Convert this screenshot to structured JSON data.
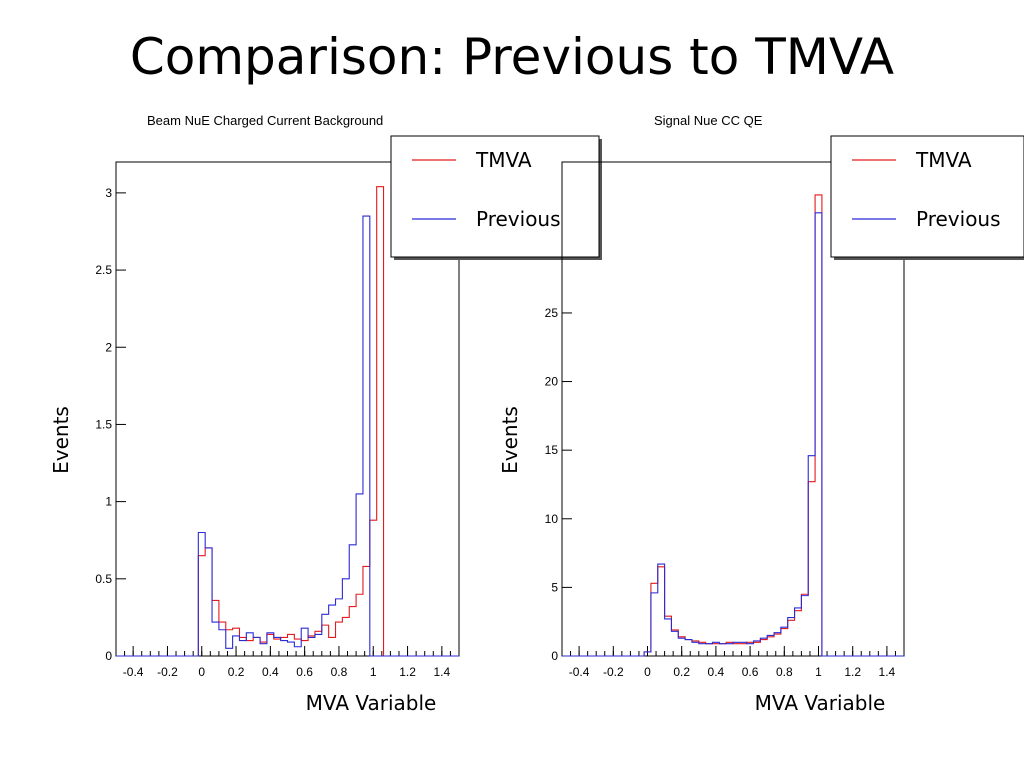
{
  "slide": {
    "title": "Comparison: Previous to TMVA"
  },
  "colors": {
    "tmva": "#e41a1c",
    "previous": "#2b2bd6",
    "axis": "#000000"
  },
  "chart_data": [
    {
      "type": "histogram",
      "title": "Beam NuE Charged Current Background",
      "xlabel": "MVA Variable",
      "ylabel": "Events",
      "xlim": [
        -0.5,
        1.5
      ],
      "ylim": [
        0,
        3.2
      ],
      "bin_width": 0.04,
      "xticks": [
        "-0.4",
        "-0.2",
        "0",
        "0.2",
        "0.4",
        "0.6",
        "0.8",
        "1",
        "1.2",
        "1.4"
      ],
      "yticks": [
        "0",
        "0.5",
        "1",
        "1.5",
        "2",
        "2.5",
        "3"
      ],
      "legend": {
        "position": "top-right",
        "entries": [
          "TMVA",
          "Previous"
        ]
      },
      "series": [
        {
          "name": "TMVA",
          "color": "#e41a1c",
          "values": [
            0.0,
            0.0,
            0.0,
            0.0,
            0.0,
            0.0,
            0.0,
            0.0,
            0.0,
            0.0,
            0.0,
            0.0,
            0.65,
            0.7,
            0.36,
            0.22,
            0.17,
            0.18,
            0.12,
            0.1,
            0.12,
            0.09,
            0.14,
            0.11,
            0.12,
            0.14,
            0.11,
            0.1,
            0.13,
            0.16,
            0.2,
            0.12,
            0.22,
            0.25,
            0.32,
            0.4,
            0.58,
            0.88,
            3.04,
            0.0,
            0.0,
            0.0,
            0.0,
            0.0,
            0.0,
            0.0,
            0.0,
            0.0,
            0.0,
            0.0
          ]
        },
        {
          "name": "Previous",
          "color": "#2b2bd6",
          "values": [
            0.0,
            0.0,
            0.0,
            0.0,
            0.0,
            0.0,
            0.0,
            0.0,
            0.0,
            0.0,
            0.0,
            0.0,
            0.8,
            0.7,
            0.22,
            0.17,
            0.05,
            0.13,
            0.1,
            0.15,
            0.12,
            0.08,
            0.15,
            0.12,
            0.1,
            0.09,
            0.06,
            0.18,
            0.12,
            0.14,
            0.27,
            0.33,
            0.37,
            0.5,
            0.72,
            1.05,
            2.85,
            0.0,
            0.0,
            0.0,
            0.0,
            0.0,
            0.0,
            0.0,
            0.0,
            0.0,
            0.0,
            0.0,
            0.0,
            0.0
          ]
        }
      ]
    },
    {
      "type": "histogram",
      "title": "Signal Nue CC QE",
      "xlabel": "MVA Variable",
      "ylabel": "Events",
      "xlim": [
        -0.5,
        1.5
      ],
      "ylim": [
        0,
        36
      ],
      "bin_width": 0.04,
      "xticks": [
        "-0.4",
        "-0.2",
        "0",
        "0.2",
        "0.4",
        "0.6",
        "0.8",
        "1",
        "1.2",
        "1.4"
      ],
      "yticks": [
        "0",
        "5",
        "10",
        "15",
        "20",
        "25"
      ],
      "legend": {
        "position": "top-right",
        "entries": [
          "TMVA",
          "Previous"
        ]
      },
      "series": [
        {
          "name": "TMVA",
          "color": "#e41a1c",
          "values": [
            0.0,
            0.0,
            0.0,
            0.0,
            0.0,
            0.0,
            0.0,
            0.0,
            0.0,
            0.0,
            0.0,
            0.0,
            0.3,
            5.3,
            6.5,
            2.9,
            1.9,
            1.4,
            1.2,
            1.1,
            1.0,
            0.9,
            0.9,
            0.9,
            1.0,
            0.9,
            0.9,
            1.0,
            1.0,
            1.2,
            1.4,
            1.6,
            2.0,
            2.6,
            3.3,
            4.5,
            12.7,
            33.6,
            0.0,
            0.0,
            0.0,
            0.0,
            0.0,
            0.0,
            0.0,
            0.0,
            0.0,
            0.0,
            0.0,
            0.0
          ]
        },
        {
          "name": "Previous",
          "color": "#2b2bd6",
          "values": [
            0.0,
            0.0,
            0.0,
            0.0,
            0.0,
            0.0,
            0.0,
            0.0,
            0.0,
            0.0,
            0.0,
            0.0,
            0.3,
            4.6,
            6.7,
            2.7,
            1.8,
            1.3,
            1.2,
            1.0,
            0.9,
            0.9,
            1.0,
            0.9,
            0.9,
            1.0,
            1.0,
            0.9,
            1.1,
            1.3,
            1.5,
            1.7,
            2.1,
            2.8,
            3.5,
            4.4,
            14.6,
            32.3,
            0.0,
            0.0,
            0.0,
            0.0,
            0.0,
            0.0,
            0.0,
            0.0,
            0.0,
            0.0,
            0.0,
            0.0
          ]
        }
      ]
    }
  ]
}
